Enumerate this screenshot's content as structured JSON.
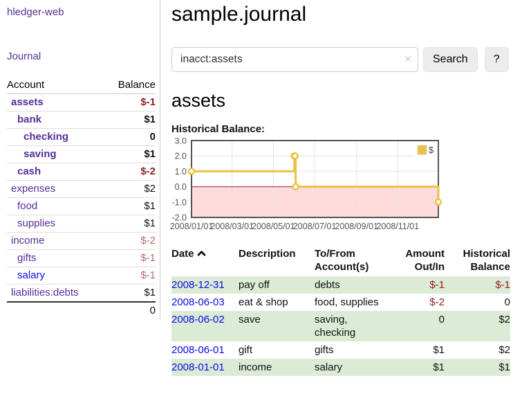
{
  "sidebar": {
    "brand": "hledger-web",
    "nav": {
      "journal": "Journal"
    },
    "accounts_table": {
      "headers": {
        "account": "Account",
        "balance": "Balance"
      },
      "rows": [
        {
          "name": "assets",
          "depth": 1,
          "balance": "$-1",
          "bold": true,
          "negative": "strong"
        },
        {
          "name": "bank",
          "depth": 2,
          "balance": "$1",
          "bold": true,
          "negative": "none"
        },
        {
          "name": "checking",
          "depth": 3,
          "balance": "0",
          "bold": true,
          "negative": "none"
        },
        {
          "name": "saving",
          "depth": 3,
          "balance": "$1",
          "bold": true,
          "negative": "none"
        },
        {
          "name": "cash",
          "depth": 2,
          "balance": "$-2",
          "bold": true,
          "negative": "strong"
        },
        {
          "name": "expenses",
          "depth": 1,
          "balance": "$2",
          "bold": false,
          "negative": "none"
        },
        {
          "name": "food",
          "depth": 2,
          "balance": "$1",
          "bold": false,
          "negative": "none"
        },
        {
          "name": "supplies",
          "depth": 2,
          "balance": "$1",
          "bold": false,
          "negative": "none"
        },
        {
          "name": "income",
          "depth": 1,
          "balance": "$-2",
          "bold": false,
          "negative": "muted"
        },
        {
          "name": "gifts",
          "depth": 2,
          "balance": "$-1",
          "bold": false,
          "negative": "muted"
        },
        {
          "name": "salary",
          "depth": 2,
          "balance": "$-1",
          "bold": false,
          "negative": "muted",
          "unvisited": true
        },
        {
          "name": "liabilities:debts",
          "depth": 1,
          "balance": "$1",
          "bold": false,
          "negative": "none"
        }
      ],
      "total": "0"
    }
  },
  "main": {
    "title": "sample.journal",
    "search": {
      "value": "inacct:assets",
      "clear_icon": "✕",
      "button_label": "Search",
      "help_label": "?"
    },
    "account_heading": "assets",
    "chart_label": "Historical Balance:",
    "register": {
      "headers": {
        "date": "Date",
        "description": "Description",
        "accounts": "To/From Account(s)",
        "amount": "Amount Out/In",
        "balance": "Historical Balance"
      },
      "rows": [
        {
          "date": "2008-12-31",
          "description": "pay off",
          "accounts": "debts",
          "amount": "$-1",
          "balance": "$-1",
          "amount_negative": true,
          "balance_negative": true,
          "shaded": true
        },
        {
          "date": "2008-06-03",
          "description": "eat & shop",
          "accounts": "food, supplies",
          "amount": "$-2",
          "balance": "0",
          "amount_negative": true,
          "balance_negative": false,
          "shaded": false
        },
        {
          "date": "2008-06-02",
          "description": "save",
          "accounts": "saving, checking",
          "amount": "0",
          "balance": "$2",
          "amount_negative": false,
          "balance_negative": false,
          "shaded": true
        },
        {
          "date": "2008-06-01",
          "description": "gift",
          "accounts": "gifts",
          "amount": "$1",
          "balance": "$2",
          "amount_negative": false,
          "balance_negative": false,
          "shaded": false
        },
        {
          "date": "2008-01-01",
          "description": "income",
          "accounts": "salary",
          "amount": "$1",
          "balance": "$1",
          "amount_negative": false,
          "balance_negative": false,
          "shaded": true
        }
      ]
    }
  },
  "chart_data": {
    "type": "line",
    "title": "Historical Balance",
    "step": true,
    "series": [
      {
        "name": "$",
        "points": [
          [
            "2008-01-01",
            1
          ],
          [
            "2008-06-01",
            2
          ],
          [
            "2008-06-02",
            2
          ],
          [
            "2008-06-03",
            0
          ],
          [
            "2008-12-31",
            -1
          ]
        ]
      }
    ],
    "xlim": [
      "2008-01-01",
      "2008-12-31"
    ],
    "ylim": [
      -2,
      3
    ],
    "x_ticks": [
      {
        "date": "2008-01-01",
        "label": "2008/01/01"
      },
      {
        "date": "2008-03-01",
        "label": "2008/03/01"
      },
      {
        "date": "2008-05-01",
        "label": "2008/05/01"
      },
      {
        "date": "2008-07-01",
        "label": "2008/07/01"
      },
      {
        "date": "2008-09-01",
        "label": "2008/09/01"
      },
      {
        "date": "2008-11-01",
        "label": "2008/11/01"
      }
    ],
    "y_ticks": [
      "3.0",
      "2.0",
      "1.0",
      "0.0",
      "-1.0",
      "-2.0"
    ],
    "legend": {
      "label": "$",
      "position": "top-right"
    },
    "grid": true,
    "colors": {
      "line": "#edc240",
      "marker_fill": "#ffffff",
      "negative_region": "#ffdbdb",
      "zero_line": "#a31616",
      "gridline": "#e4e4e4",
      "border": "#545454",
      "tick_text": "#545454",
      "legend_text": "#444444"
    }
  },
  "colors": {
    "link_purple": "#552e99",
    "link_blue": "#0909e8",
    "negative_strong": "#8f1d1d",
    "negative_muted": "#b36b6b",
    "row_shaded_green": "#dcebd5"
  }
}
